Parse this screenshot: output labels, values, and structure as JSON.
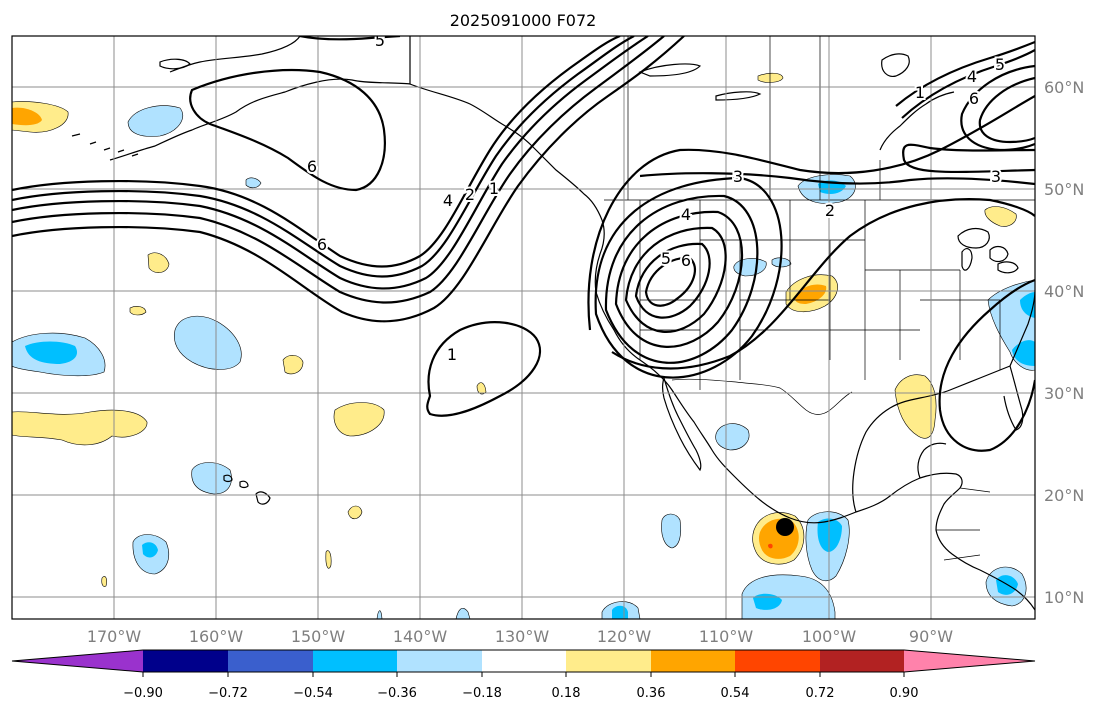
{
  "title": "2025091000 F072",
  "map": {
    "lon_labels": [
      "170°W",
      "160°W",
      "150°W",
      "140°W",
      "130°W",
      "120°W",
      "110°W",
      "100°W",
      "90°W"
    ],
    "lat_labels": [
      "60°N",
      "50°N",
      "40°N",
      "30°N",
      "20°N",
      "10°N"
    ],
    "contour_labels": [
      "5",
      "6",
      "6",
      "4",
      "2",
      "1",
      "1",
      "3",
      "4",
      "5",
      "6",
      "2",
      "3",
      "1",
      "4",
      "6",
      "5"
    ],
    "center_marker": "storm-center-dot"
  },
  "colorbar": {
    "colors": [
      "#9a32cd",
      "#00008b",
      "#3a5fcd",
      "#00bfff",
      "#b0e2ff",
      "#ffffff",
      "#ffec8b",
      "#ffa500",
      "#ff4500",
      "#b22222",
      "#ff82ab"
    ],
    "tick_labels": [
      "−0.90",
      "−0.72",
      "−0.54",
      "−0.36",
      "−0.18",
      "0.18",
      "0.36",
      "0.54",
      "0.72",
      "0.90"
    ]
  }
}
